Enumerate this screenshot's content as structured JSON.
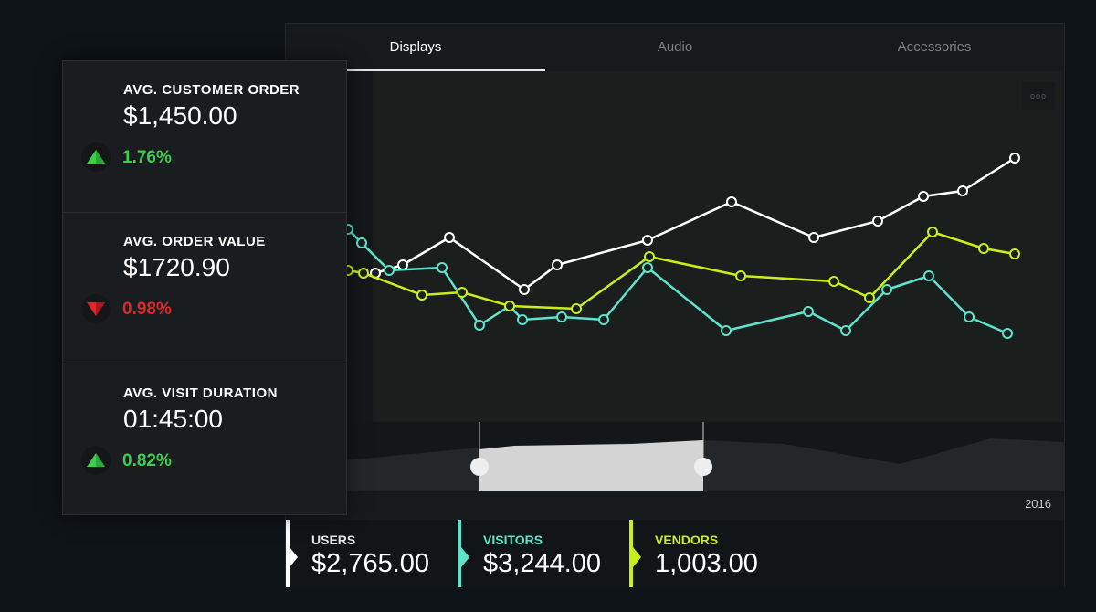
{
  "tabs": [
    {
      "label": "Displays",
      "active": true
    },
    {
      "label": "Audio",
      "active": false
    },
    {
      "label": "Accessories",
      "active": false
    }
  ],
  "more_icon": "ooo",
  "navigator": {
    "year_label": "2016"
  },
  "legend": [
    {
      "name": "USERS",
      "value": "$2,765.00",
      "color": "#ffffff"
    },
    {
      "name": "VISITORS",
      "value": "$3,244.00",
      "color": "#5ee3cc"
    },
    {
      "name": "VENDORS",
      "value": "1,003.00",
      "color": "#c8f018"
    }
  ],
  "kpis": [
    {
      "title": "AVG. CUSTOMER ORDER",
      "value": "$1,450.00",
      "change": "1.76%",
      "direction": "up",
      "color": "#3ccf4e"
    },
    {
      "title": "AVG. ORDER VALUE",
      "value": "$1720.90",
      "change": "0.98%",
      "direction": "down",
      "color": "#e0262a"
    },
    {
      "title": "AVG. VISIT DURATION",
      "value": "01:45:00",
      "change": "0.82%",
      "direction": "up",
      "color": "#3ccf4e"
    }
  ],
  "chart_data": {
    "type": "line",
    "grid": false,
    "series": [
      {
        "color": "#ffffff",
        "points": [
          [
            98,
            59
          ],
          [
            128,
            62
          ],
          [
            179,
            72
          ],
          [
            261,
            53
          ],
          [
            297,
            62
          ],
          [
            396,
            71
          ],
          [
            488,
            85
          ],
          [
            578,
            72
          ],
          [
            648,
            78
          ],
          [
            698,
            87
          ],
          [
            741,
            89
          ],
          [
            798,
            101
          ]
        ]
      },
      {
        "color": "#5ee3cc",
        "points": [
          [
            68,
            75
          ],
          [
            83,
            70
          ],
          [
            113,
            60
          ],
          [
            171,
            61
          ],
          [
            212,
            40
          ],
          [
            245,
            47
          ],
          [
            259,
            42
          ],
          [
            302,
            43
          ],
          [
            348,
            42
          ],
          [
            396,
            61
          ],
          [
            482,
            38
          ],
          [
            572,
            45
          ],
          [
            613,
            38
          ],
          [
            658,
            53
          ],
          [
            704,
            58
          ],
          [
            748,
            43
          ],
          [
            790,
            37
          ]
        ]
      },
      {
        "color": "#c8f018",
        "points": [
          [
            68,
            60
          ],
          [
            85,
            59
          ],
          [
            149,
            51
          ],
          [
            193,
            52
          ],
          [
            245,
            47
          ],
          [
            318,
            46
          ],
          [
            398,
            65
          ],
          [
            498,
            58
          ],
          [
            600,
            56
          ],
          [
            639,
            50
          ],
          [
            708,
            74
          ],
          [
            764,
            68
          ],
          [
            798,
            66
          ]
        ]
      }
    ],
    "navigator_selection": [
      0.25,
      0.53
    ]
  }
}
